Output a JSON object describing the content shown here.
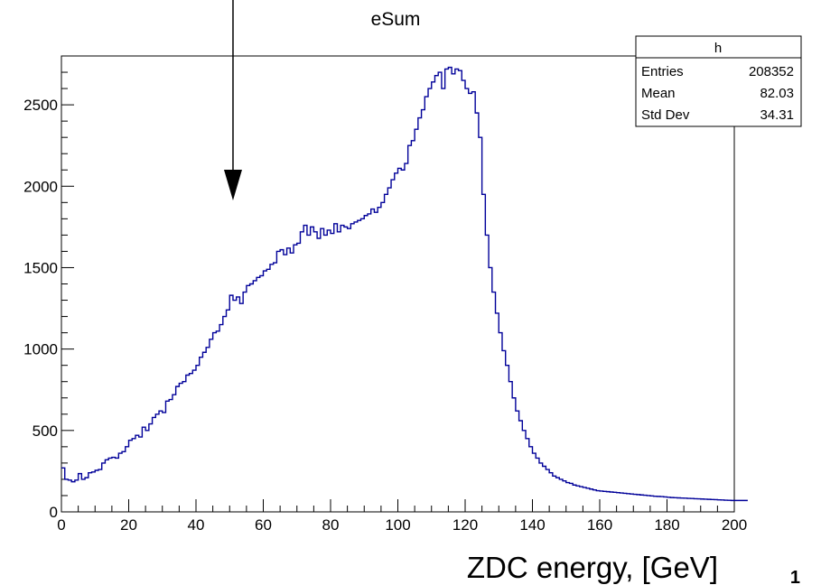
{
  "chart_data": {
    "type": "histogram",
    "title": "eSum",
    "xlabel": "ZDC energy, [GeV]",
    "ylabel": "",
    "xlim": [
      0,
      200
    ],
    "ylim": [
      0,
      2800
    ],
    "grid": false,
    "x_ticks": [
      "0",
      "20",
      "40",
      "60",
      "80",
      "100",
      "120",
      "140",
      "160",
      "180",
      "200"
    ],
    "y_ticks": [
      "0",
      "500",
      "1000",
      "1500",
      "2000",
      "2500"
    ],
    "series": [
      {
        "name": "h",
        "color": "#000099",
        "bin_edges_start": 0,
        "bin_width": 1,
        "values": [
          270,
          200,
          195,
          185,
          195,
          235,
          200,
          210,
          240,
          245,
          255,
          260,
          300,
          320,
          330,
          335,
          330,
          360,
          370,
          400,
          440,
          450,
          470,
          460,
          520,
          500,
          540,
          580,
          600,
          620,
          610,
          680,
          690,
          720,
          770,
          790,
          800,
          840,
          850,
          870,
          900,
          950,
          980,
          1010,
          1060,
          1100,
          1110,
          1150,
          1200,
          1240,
          1330,
          1300,
          1320,
          1280,
          1350,
          1390,
          1400,
          1420,
          1440,
          1450,
          1480,
          1490,
          1520,
          1530,
          1600,
          1610,
          1580,
          1620,
          1590,
          1640,
          1650,
          1720,
          1760,
          1700,
          1750,
          1720,
          1680,
          1740,
          1700,
          1730,
          1710,
          1770,
          1720,
          1760,
          1750,
          1740,
          1770,
          1780,
          1790,
          1800,
          1820,
          1830,
          1860,
          1840,
          1870,
          1900,
          1950,
          1990,
          2040,
          2080,
          2110,
          2100,
          2140,
          2250,
          2280,
          2350,
          2420,
          2470,
          2550,
          2600,
          2640,
          2680,
          2700,
          2600,
          2720,
          2730,
          2690,
          2720,
          2710,
          2650,
          2600,
          2570,
          2580,
          2450,
          2300,
          1950,
          1700,
          1500,
          1350,
          1220,
          1100,
          990,
          900,
          800,
          700,
          620,
          560,
          500,
          450,
          400,
          360,
          330,
          300,
          280,
          260,
          240,
          220,
          210,
          200,
          190,
          180,
          175,
          165,
          160,
          155,
          150,
          145,
          140,
          135,
          130,
          128,
          126,
          124,
          122,
          120,
          118,
          116,
          114,
          112,
          110,
          108,
          106,
          104,
          102,
          100,
          98,
          96,
          95,
          94,
          92,
          90,
          88,
          87,
          86,
          85,
          84,
          83,
          82,
          81,
          80,
          79,
          78,
          77,
          76,
          75,
          74,
          73,
          72,
          71,
          70,
          70,
          70,
          70,
          70
        ],
        "values_note_removed": true
      }
    ],
    "annotations": [
      {
        "type": "arrow",
        "at_x": 51,
        "points": "down"
      }
    ]
  },
  "stats_box": {
    "name": "h",
    "rows": [
      {
        "label": "Entries",
        "value": "208352"
      },
      {
        "label": "Mean",
        "value": "82.03"
      },
      {
        "label": "Std Dev",
        "value": "34.31"
      }
    ]
  },
  "page_number": "1"
}
